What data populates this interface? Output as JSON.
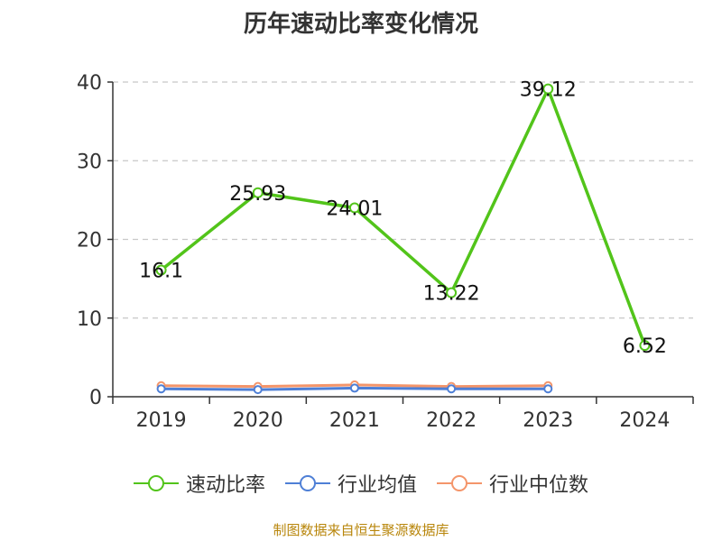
{
  "chart_data": {
    "type": "line",
    "title": "历年速动比率变化情况",
    "categories": [
      "2019",
      "2020",
      "2021",
      "2022",
      "2023",
      "2024"
    ],
    "ylim": [
      0,
      40
    ],
    "yticks": [
      0,
      10,
      20,
      30,
      40
    ],
    "grid": true,
    "legend_position": "bottom",
    "series": [
      {
        "name": "速动比率",
        "color": "#52c41a",
        "values": [
          16.1,
          25.93,
          24.01,
          13.22,
          39.12,
          6.52
        ],
        "labels": [
          "16.1",
          "25.93",
          "24.01",
          "13.22",
          "39.12",
          "6.52"
        ]
      },
      {
        "name": "行业均值",
        "color": "#4e7fd6",
        "values": [
          1.0,
          0.9,
          1.1,
          1.0,
          1.0,
          null
        ]
      },
      {
        "name": "行业中位数",
        "color": "#f4956a",
        "values": [
          1.4,
          1.3,
          1.5,
          1.3,
          1.4,
          null
        ]
      }
    ]
  },
  "footer": {
    "source": "制图数据来自恒生聚源数据库"
  }
}
